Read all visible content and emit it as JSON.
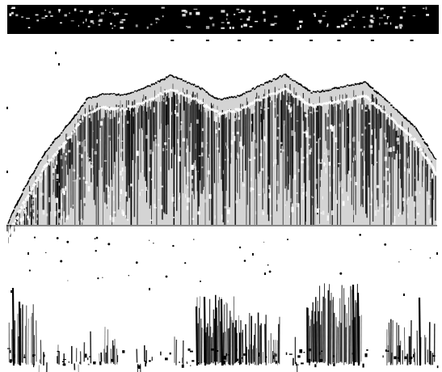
{
  "image": {
    "kind": "thresholded black-and-white spectrogram-like scan",
    "colors": {
      "background": "#ffffff",
      "ink": "#000000",
      "soft_ink": "#111111"
    }
  }
}
